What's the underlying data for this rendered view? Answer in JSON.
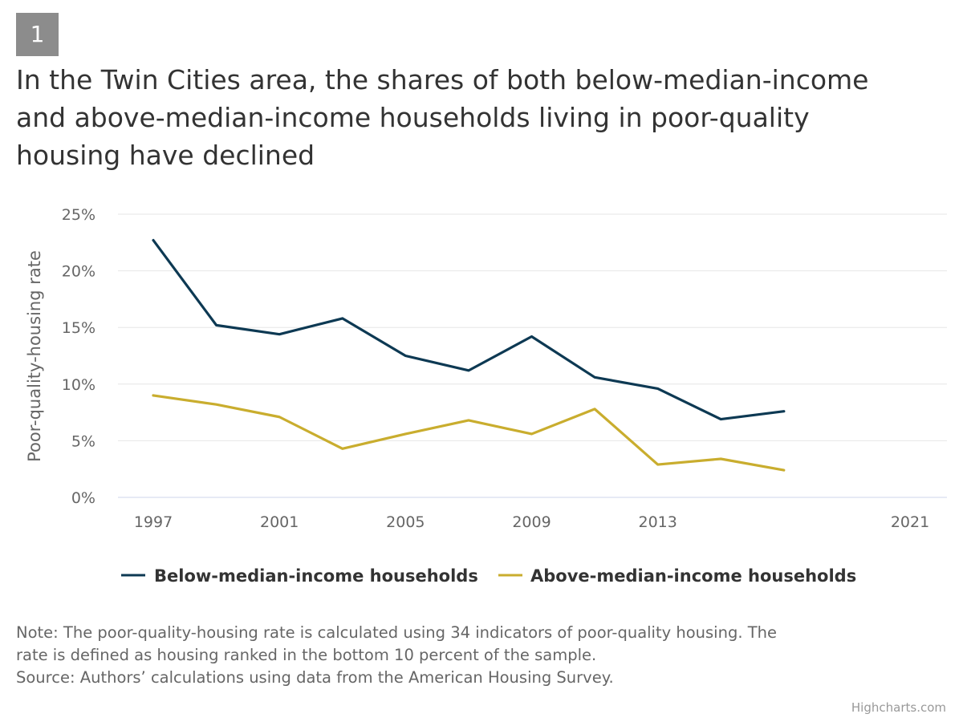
{
  "badge": "1",
  "title": "In the Twin Cities area, the shares of both below-median-income and above-median-income households living in poor-quality housing have declined",
  "notes": {
    "line1": "Note: The poor-quality-housing rate is calculated using 34 indicators of poor-quality housing. The",
    "line2": "rate is defined as housing ranked in the bottom 10 percent of the sample.",
    "line3": "Source: Authors’ calculations using data from the American Housing Survey."
  },
  "credits": "Highcharts.com",
  "colors": {
    "below": "#0d3953",
    "above": "#c9ad2e",
    "grid": "#e6e6e6",
    "axis": "#ccd6eb"
  },
  "chart_data": {
    "type": "line",
    "ylabel": "Poor-quality-housing rate",
    "ylim": [
      0,
      25
    ],
    "yticks": [
      "0%",
      "5%",
      "10%",
      "15%",
      "20%",
      "25%"
    ],
    "xlim": [
      1997,
      2021
    ],
    "xticks": [
      "1997",
      "2001",
      "2005",
      "2009",
      "2013",
      "2021"
    ],
    "grid": true,
    "legend": "bottom-center",
    "x": [
      1997,
      1999,
      2001,
      2003,
      2005,
      2007,
      2009,
      2011,
      2013,
      2015,
      2017
    ],
    "series": [
      {
        "name": "Below-median-income households",
        "values": [
          22.7,
          15.2,
          14.4,
          15.8,
          12.5,
          11.2,
          14.2,
          10.6,
          9.6,
          6.9,
          7.6
        ]
      },
      {
        "name": "Above-median-income households",
        "values": [
          9.0,
          8.2,
          7.1,
          4.3,
          5.6,
          6.8,
          5.6,
          7.8,
          2.9,
          3.4,
          2.4
        ]
      }
    ]
  }
}
